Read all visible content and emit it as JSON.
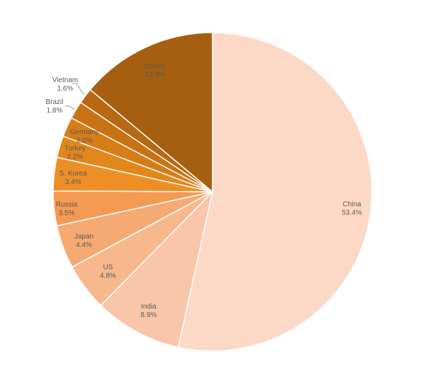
{
  "chart_data": {
    "type": "pie",
    "title": "",
    "start_angle_deg": 0,
    "direction": "clockwise",
    "slices": [
      {
        "label": "China",
        "value": 53.4,
        "pct_label": "53.4%",
        "color": "#fcd9c7"
      },
      {
        "label": "India",
        "value": 8.9,
        "pct_label": "8.9%",
        "color": "#f9c6a9"
      },
      {
        "label": "US",
        "value": 4.8,
        "pct_label": "4.8%",
        "color": "#f8b88e"
      },
      {
        "label": "Japan",
        "value": 4.4,
        "pct_label": "4.4%",
        "color": "#f6aa73"
      },
      {
        "label": "Russia",
        "value": 3.5,
        "pct_label": "3.5%",
        "color": "#f49a52"
      },
      {
        "label": "S. Korea",
        "value": 3.4,
        "pct_label": "3.4%",
        "color": "#ee8f26"
      },
      {
        "label": "Turkey",
        "value": 2.2,
        "pct_label": "2.2%",
        "color": "#e3861b"
      },
      {
        "label": "Germany",
        "value": 2.0,
        "pct_label": "2.0%",
        "color": "#d77d18"
      },
      {
        "label": "Brazil",
        "value": 1.8,
        "pct_label": "1.8%",
        "color": "#c97214"
      },
      {
        "label": "Vietnam",
        "value": 1.6,
        "pct_label": "1.6%",
        "color": "#b96812"
      },
      {
        "label": "Others",
        "value": 13.9,
        "pct_label": "13.9%",
        "color": "#a65f10"
      }
    ]
  }
}
